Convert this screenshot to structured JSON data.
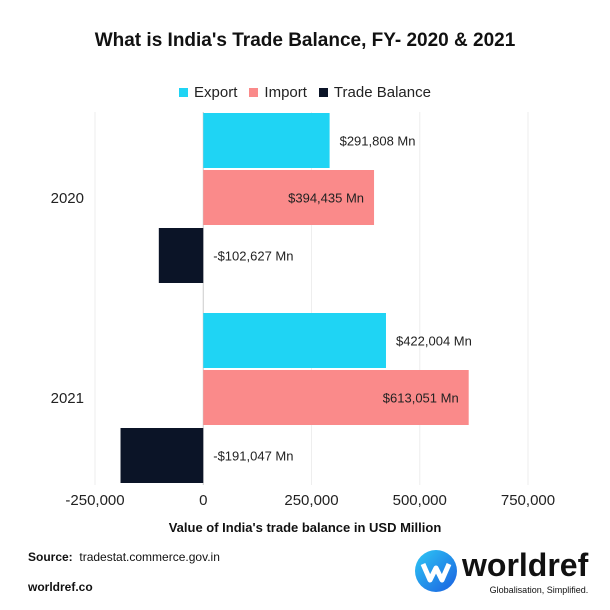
{
  "chart_data": {
    "type": "bar",
    "orientation": "horizontal",
    "title": "What is India's Trade  Balance, FY- 2020 & 2021",
    "xlabel": "Value of India's trade balance in USD Million",
    "ylabel": "",
    "categories": [
      "2020",
      "2021"
    ],
    "series": [
      {
        "name": "Export",
        "color": "#1fd4f4",
        "values": [
          291808,
          422004
        ],
        "labels": [
          "$291,808 Mn",
          "$422,004 Mn"
        ]
      },
      {
        "name": "Import",
        "color": "#fa8a8a",
        "values": [
          394435,
          613051
        ],
        "labels": [
          "$394,435 Mn",
          "$613,051 Mn"
        ]
      },
      {
        "name": "Trade Balance",
        "color": "#0b1427",
        "values": [
          -102627,
          -191047
        ],
        "labels": [
          "-$102,627 Mn",
          "-$191,047 Mn"
        ]
      }
    ],
    "xlim": [
      -250000,
      750000
    ],
    "xticks": [
      -250000,
      0,
      250000,
      500000,
      750000
    ],
    "xtick_labels": [
      "-250,000",
      "0",
      "250,000",
      "500,000",
      "750,000"
    ],
    "grid": true,
    "legend_position": "top"
  },
  "footer": {
    "source_label": "Source:",
    "source_value": "tradestat.commerce.gov.in",
    "site": "worldref.co"
  },
  "logo": {
    "name": "worldref",
    "tagline": "Globalisation, Simplified."
  }
}
